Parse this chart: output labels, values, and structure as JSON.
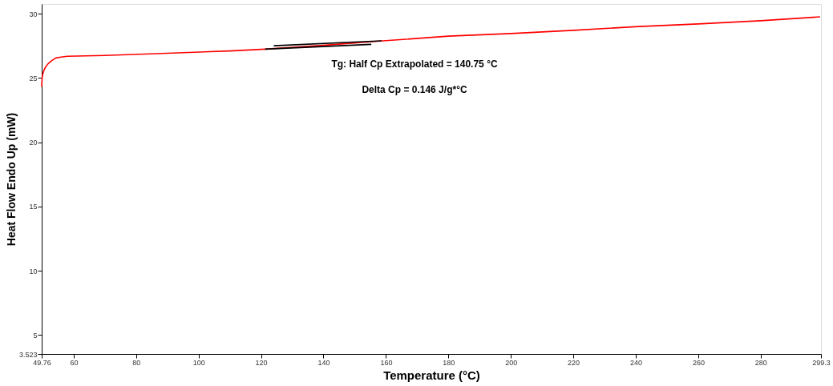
{
  "chart_data": {
    "type": "line",
    "xlabel": "Temperature (°C)",
    "ylabel": "Heat Flow Endo Up (mW)",
    "xlim": [
      49.76,
      299.3
    ],
    "xticks": [
      49.76,
      60,
      80,
      100,
      120,
      140,
      160,
      180,
      200,
      220,
      240,
      260,
      280,
      299.3
    ],
    "ylim": [
      3.523,
      30.75
    ],
    "yticks": [
      3.523,
      5,
      10,
      15,
      20,
      25,
      30
    ],
    "grid": false,
    "marker": "none",
    "line_style": "solid",
    "series": [
      {
        "color": "#ff0000",
        "x": [
          49.76,
          49.9,
          50.1,
          50.5,
          51.0,
          51.8,
          53.0,
          54.3,
          56.0,
          58.0,
          70,
          90,
          110,
          121.3,
          140.75,
          159,
          180,
          200,
          220,
          241,
          260,
          280,
          299.0
        ],
        "values": [
          24.3,
          25.0,
          25.3,
          25.6,
          25.85,
          26.1,
          26.35,
          26.55,
          26.62,
          26.68,
          26.75,
          26.92,
          27.1,
          27.24,
          27.55,
          27.88,
          28.25,
          28.45,
          28.7,
          29.0,
          29.2,
          29.45,
          29.75
        ]
      },
      {
        "color": "#000000",
        "x": [
          124.1,
          158.6
        ],
        "values": [
          27.5,
          27.88
        ]
      },
      {
        "color": "#000000",
        "x": [
          121.3,
          155.3
        ],
        "values": [
          27.24,
          27.61
        ]
      }
    ],
    "annotations": [
      "Tg: Half Cp Extrapolated = 140.75 °C",
      "Delta Cp = 0.146 J/g*°C"
    ]
  }
}
